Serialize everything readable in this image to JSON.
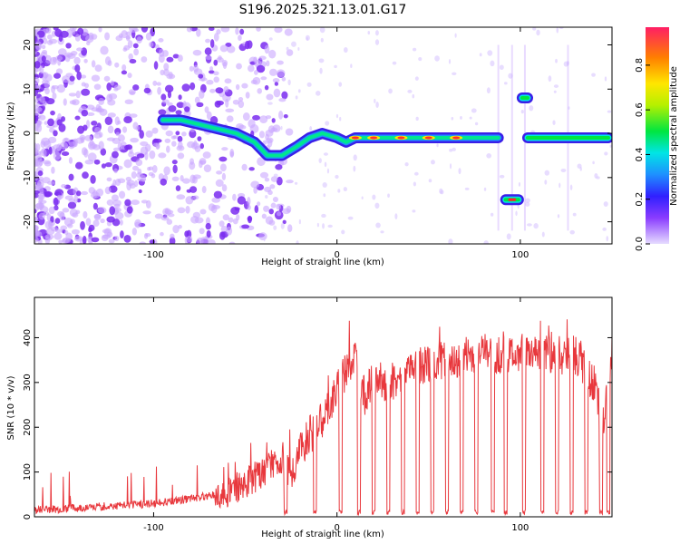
{
  "title": "S196.2025.321.13.01.G17",
  "chart_data": [
    {
      "type": "heatmap",
      "xlabel": "Height of straight line (km)",
      "ylabel": "Frequency (Hz)",
      "xlim": [
        -165,
        150
      ],
      "ylim": [
        -25,
        24
      ],
      "xticks": [
        -100,
        0,
        100
      ],
      "yticks": [
        -20,
        -10,
        0,
        10,
        20
      ],
      "colorbar": {
        "label": "Normalized spectral amplitude",
        "range": [
          0,
          0.97
        ],
        "ticks": [
          "0.0",
          "0.2",
          "0.4",
          "0.6",
          "0.8"
        ]
      },
      "ridge": [
        {
          "x": -95,
          "y": 3
        },
        {
          "x": -85,
          "y": 3
        },
        {
          "x": -75,
          "y": 2
        },
        {
          "x": -65,
          "y": 1
        },
        {
          "x": -55,
          "y": 0
        },
        {
          "x": -45,
          "y": -2
        },
        {
          "x": -38,
          "y": -5
        },
        {
          "x": -30,
          "y": -5
        },
        {
          "x": -22,
          "y": -3
        },
        {
          "x": -15,
          "y": -1
        },
        {
          "x": -8,
          "y": 0
        },
        {
          "x": 0,
          "y": -1
        },
        {
          "x": 5,
          "y": -2
        },
        {
          "x": 10,
          "y": -1
        },
        {
          "x": 20,
          "y": -1
        },
        {
          "x": 35,
          "y": -1
        },
        {
          "x": 50,
          "y": -1
        },
        {
          "x": 65,
          "y": -1
        },
        {
          "x": 80,
          "y": -1
        },
        {
          "x": 88,
          "y": -1
        }
      ],
      "segments": [
        {
          "x_start": 92,
          "x_end": 99,
          "y": -15
        },
        {
          "x_start": 101,
          "x_end": 104,
          "y": 8
        },
        {
          "x_start": 104,
          "x_end": 148,
          "y": -1
        }
      ]
    },
    {
      "type": "line",
      "xlabel": "Height of straight line (km)",
      "ylabel": "SNR (10 * v/v)",
      "xlim": [
        -165,
        150
      ],
      "ylim": [
        0,
        490
      ],
      "xticks": [
        -100,
        0,
        100
      ],
      "yticks": [
        0,
        100,
        200,
        300,
        400
      ],
      "series": [
        {
          "name": "SNR",
          "color": "#e8383d",
          "x": [
            -165,
            -140,
            -120,
            -100,
            -80,
            -60,
            -50,
            -40,
            -35,
            -30,
            -25,
            -20,
            -15,
            -10,
            -5,
            0,
            5,
            10,
            15,
            20,
            30,
            40,
            50,
            60,
            70,
            80,
            90,
            100,
            110,
            120,
            130,
            140,
            145,
            150
          ],
          "values": [
            15,
            20,
            25,
            30,
            40,
            55,
            75,
            100,
            120,
            125,
            90,
            150,
            180,
            205,
            240,
            280,
            330,
            360,
            270,
            300,
            300,
            340,
            340,
            350,
            360,
            370,
            360,
            370,
            360,
            360,
            360,
            300,
            200,
            360
          ]
        }
      ],
      "dropouts": [
        -28,
        -12,
        2,
        12,
        20,
        28,
        36,
        44,
        52,
        60,
        68,
        76,
        85,
        92,
        102,
        112,
        120,
        128,
        136,
        144,
        148
      ]
    }
  ]
}
